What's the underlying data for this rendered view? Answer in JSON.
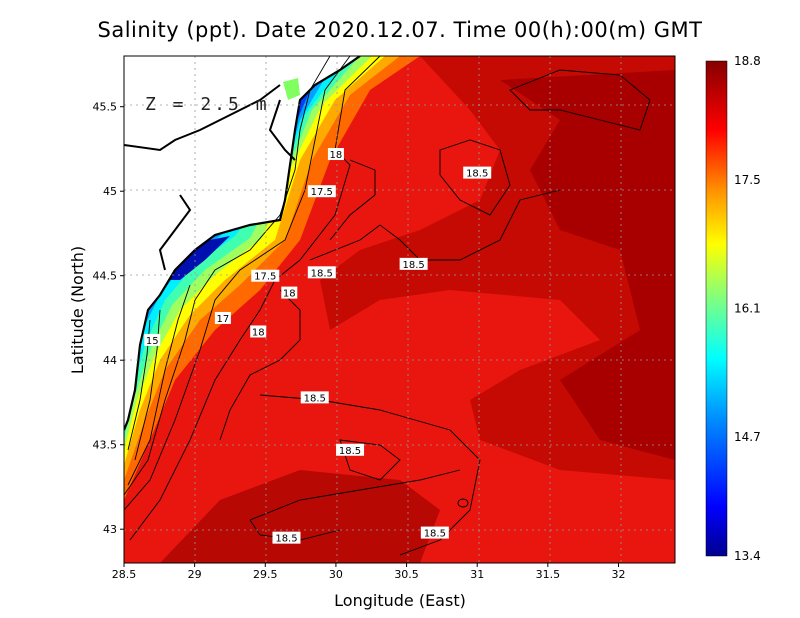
{
  "title": "Salinity (ppt). Date 2020.12.07. Time 00(h):00(m) GMT",
  "depth_label": "Z = 2.5 m",
  "axes": {
    "xlabel": "Longitude (East)",
    "ylabel": "Latitude (North)",
    "xticks": [
      "28.5",
      "29",
      "29.5",
      "30",
      "30.5",
      "31",
      "31.5",
      "32"
    ],
    "yticks": [
      "43",
      "43.5",
      "44",
      "44.5",
      "45",
      "45.5"
    ]
  },
  "colorbar": {
    "ticks": [
      "18.8",
      "17.5",
      "16.1",
      "14.7",
      "13.4"
    ],
    "min": 13.4,
    "max": 18.8,
    "colors": [
      "#00008f",
      "#0000ff",
      "#0080ff",
      "#00ffff",
      "#80ff80",
      "#ffff00",
      "#ff8000",
      "#ff0000",
      "#800000"
    ]
  },
  "contour_labels": [
    "18",
    "17.5",
    "18.5",
    "18.5",
    "17.5",
    "18.5",
    "18",
    "17",
    "18",
    "15",
    "18.5",
    "18.5",
    "18.5",
    "18.5"
  ],
  "chart_data": {
    "type": "heatmap",
    "title": "Salinity (ppt). Date 2020.12.07. Time 00(h):00(m) GMT",
    "xlabel": "Longitude (East)",
    "ylabel": "Latitude (North)",
    "xlim": [
      28.5,
      32.4
    ],
    "ylim": [
      42.8,
      45.8
    ],
    "value_range": [
      13.4,
      18.8
    ],
    "units": "ppt",
    "depth": "Z = 2.5 m",
    "contour_levels": [
      15,
      17,
      17.5,
      18,
      18.5
    ],
    "labeled_contours": [
      {
        "label": "18",
        "lon": 30.0,
        "lat": 45.22
      },
      {
        "label": "17.5",
        "lon": 29.9,
        "lat": 45.0
      },
      {
        "label": "18.5",
        "lon": 31.0,
        "lat": 45.11
      },
      {
        "label": "18.5",
        "lon": 30.55,
        "lat": 44.57
      },
      {
        "label": "17.5",
        "lon": 29.5,
        "lat": 44.5
      },
      {
        "label": "18.5",
        "lon": 29.9,
        "lat": 44.52
      },
      {
        "label": "18",
        "lon": 29.67,
        "lat": 44.4
      },
      {
        "label": "17",
        "lon": 29.2,
        "lat": 44.25
      },
      {
        "label": "18",
        "lon": 29.45,
        "lat": 44.17
      },
      {
        "label": "15",
        "lon": 28.7,
        "lat": 44.12
      },
      {
        "label": "18.5",
        "lon": 29.85,
        "lat": 43.78
      },
      {
        "label": "18.5",
        "lon": 30.1,
        "lat": 43.47
      },
      {
        "label": "18.5",
        "lon": 29.65,
        "lat": 42.95
      },
      {
        "label": "18.5",
        "lon": 30.7,
        "lat": 42.98
      }
    ]
  }
}
